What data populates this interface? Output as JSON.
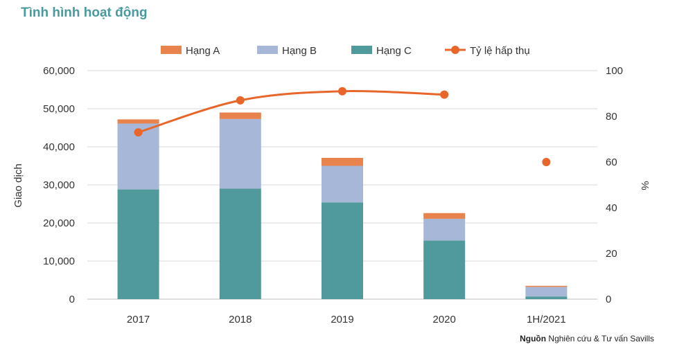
{
  "title": "Tình hình hoạt động",
  "source": {
    "label": "Nguồn",
    "text": "Nghiên cứu & Tư vấn Savills"
  },
  "colors": {
    "hang_a": "#e8834d",
    "hang_b": "#a6b7d7",
    "hang_c": "#519a9b",
    "absorption": "#e8662a",
    "title": "#4a9a9c",
    "grid": "#d9d9d9"
  },
  "chart_data": {
    "type": "bar",
    "categories": [
      "2017",
      "2018",
      "2019",
      "2020",
      "1H/2021"
    ],
    "series": [
      {
        "name": "Hạng C",
        "kind": "bar",
        "stack": "total",
        "values": [
          28800,
          29000,
          25400,
          15400,
          700
        ]
      },
      {
        "name": "Hạng B",
        "kind": "bar",
        "stack": "total",
        "values": [
          17300,
          18300,
          9600,
          5700,
          2500
        ]
      },
      {
        "name": "Hạng A",
        "kind": "bar",
        "stack": "total",
        "values": [
          1100,
          1700,
          2100,
          1500,
          300
        ]
      },
      {
        "name": "Tỷ lệ hấp thụ",
        "kind": "line",
        "axis": "right",
        "values": [
          73,
          87,
          91,
          89.5,
          60
        ],
        "smooth": true,
        "connect_last": false
      }
    ],
    "ylabel": "Giao dịch",
    "y2label": "%",
    "ylim": [
      0,
      60000
    ],
    "y2lim": [
      0,
      100
    ],
    "yticks": [
      "0",
      "10,000",
      "20,000",
      "30,000",
      "40,000",
      "50,000",
      "60,000"
    ],
    "y2ticks": [
      "0",
      "20",
      "40",
      "60",
      "80",
      "100"
    ],
    "grid": true,
    "legend": "top",
    "legend_items": [
      "Hạng A",
      "Hạng B",
      "Hạng C",
      "Tỷ lệ hấp thụ"
    ]
  }
}
